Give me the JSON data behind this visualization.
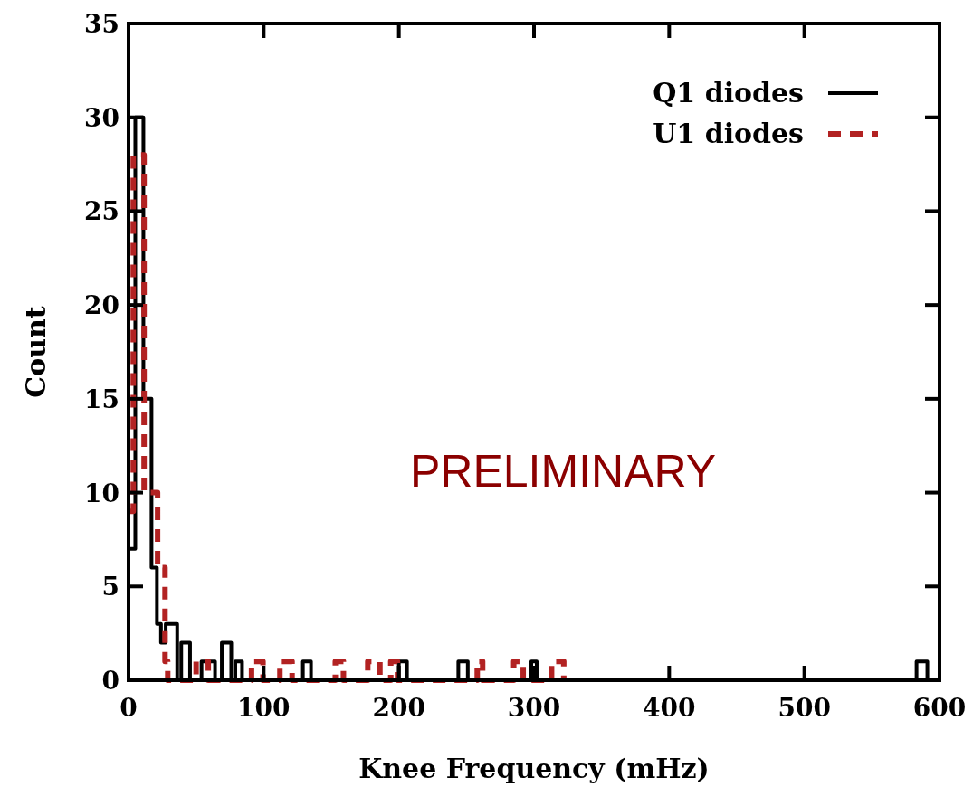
{
  "chart_data": {
    "type": "step",
    "xlabel": "Knee Frequency (mHz)",
    "ylabel": "Count",
    "xlim": [
      0,
      600
    ],
    "xticks": [
      0,
      100,
      200,
      300,
      400,
      500,
      600
    ],
    "ylim": [
      0,
      35
    ],
    "yticks": [
      0,
      5,
      10,
      15,
      20,
      25,
      30,
      35
    ],
    "legend": "top right",
    "grid": false,
    "annotations": [
      "PRELIMINARY"
    ],
    "series": [
      {
        "name": "Q1 diodes",
        "color": "#000000",
        "line_style": "solid",
        "x": [
          0,
          5,
          11,
          17,
          21,
          24,
          27.5,
          36,
          39,
          45.5,
          54,
          64,
          69,
          76,
          79,
          84,
          129,
          135,
          200,
          206,
          244,
          251,
          298,
          302,
          583,
          591
        ],
        "values": [
          7,
          30,
          15,
          6,
          3,
          2,
          3,
          0,
          2,
          0,
          1,
          0,
          2,
          0,
          1,
          0,
          1,
          0,
          1,
          0,
          1,
          0,
          1,
          0,
          1,
          0
        ]
      },
      {
        "name": "U1 diodes",
        "color": "#b22222",
        "line_style": "dashed",
        "x": [
          0,
          3.5,
          11.5,
          21.5,
          27,
          29,
          50,
          59,
          91,
          99.5,
          112,
          121,
          153,
          159,
          177,
          186,
          194,
          199,
          258,
          262,
          285,
          292,
          313,
          322
        ],
        "values": [
          9,
          28,
          10,
          6,
          1,
          0,
          1,
          0,
          1,
          0,
          1,
          0,
          1,
          0,
          1,
          0,
          1,
          0,
          1,
          0,
          1,
          0,
          1,
          0
        ]
      }
    ]
  }
}
